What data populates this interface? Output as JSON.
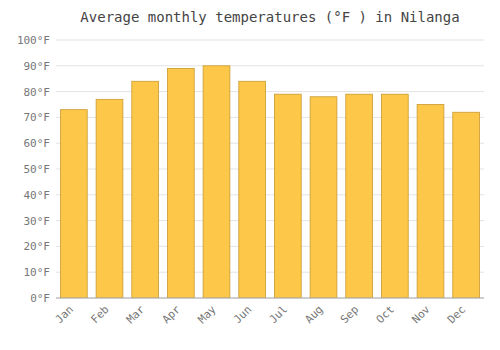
{
  "chart_data": {
    "type": "bar",
    "title": "Average monthly temperatures (°F ) in Nilanga",
    "categories": [
      "Jan",
      "Feb",
      "Mar",
      "Apr",
      "May",
      "Jun",
      "Jul",
      "Aug",
      "Sep",
      "Oct",
      "Nov",
      "Dec"
    ],
    "values": [
      73,
      77,
      84,
      89,
      90,
      84,
      79,
      78,
      79,
      79,
      75,
      72
    ],
    "color": "#FDC84A",
    "ylim": [
      0,
      100
    ],
    "yticks": [
      {
        "value": 0,
        "label": "0°F"
      },
      {
        "value": 10,
        "label": "10°F"
      },
      {
        "value": 20,
        "label": "20°F"
      },
      {
        "value": 30,
        "label": "30°F"
      },
      {
        "value": 40,
        "label": "40°F"
      },
      {
        "value": 50,
        "label": "50°F"
      },
      {
        "value": 60,
        "label": "60°F"
      },
      {
        "value": 70,
        "label": "70°F"
      },
      {
        "value": 80,
        "label": "80°F"
      },
      {
        "value": 90,
        "label": "90°F"
      },
      {
        "value": 100,
        "label": "100°F"
      }
    ],
    "grid": true
  }
}
